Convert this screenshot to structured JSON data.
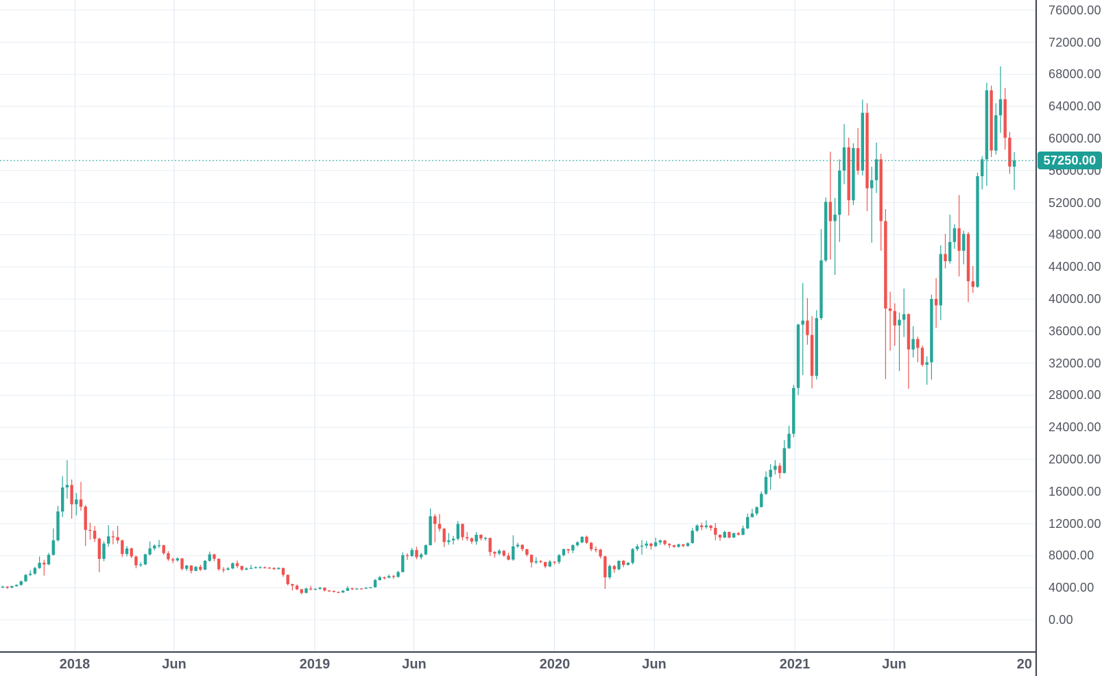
{
  "chart_data": {
    "type": "candlestick",
    "title": "",
    "xlabel": "",
    "ylabel": "",
    "legend": [],
    "grid": true,
    "last_price": 57250,
    "last_price_label": "57250.00",
    "ylim": [
      0,
      78500
    ],
    "y_axis": {
      "ticks": [
        {
          "value": 76000,
          "label": "76000.00"
        },
        {
          "value": 72000,
          "label": "72000.00"
        },
        {
          "value": 68000,
          "label": "68000.00"
        },
        {
          "value": 64000,
          "label": "64000.00"
        },
        {
          "value": 60000,
          "label": "60000.00"
        },
        {
          "value": 56000,
          "label": "56000.00"
        },
        {
          "value": 52000,
          "label": "52000.00"
        },
        {
          "value": 48000,
          "label": "48000.00"
        },
        {
          "value": 44000,
          "label": "44000.00"
        },
        {
          "value": 40000,
          "label": "40000.00"
        },
        {
          "value": 36000,
          "label": "36000.00"
        },
        {
          "value": 32000,
          "label": "32000.00"
        },
        {
          "value": 28000,
          "label": "28000.00"
        },
        {
          "value": 24000,
          "label": "24000.00"
        },
        {
          "value": 20000,
          "label": "20000.00"
        },
        {
          "value": 16000,
          "label": "16000.00"
        },
        {
          "value": 12000,
          "label": "12000.00"
        },
        {
          "value": 8000,
          "label": "8000.00"
        },
        {
          "value": 4000,
          "label": "4000.00"
        },
        {
          "value": 0,
          "label": "0.00"
        }
      ]
    },
    "x_axis": {
      "start_date": "2017-09-13",
      "interval_days": 7,
      "ticks": [
        {
          "label": "2018",
          "week": 15.71
        },
        {
          "label": "Jun",
          "week": 37.29
        },
        {
          "label": "2019",
          "week": 67.86
        },
        {
          "label": "Jun",
          "week": 89.43
        },
        {
          "label": "2020",
          "week": 120.0
        },
        {
          "label": "Jun",
          "week": 141.71
        },
        {
          "label": "2021",
          "week": 172.29
        },
        {
          "label": "Jun",
          "week": 193.86
        },
        {
          "label": "20",
          "week": 224.43,
          "clipped": true
        }
      ]
    },
    "colors": {
      "up": "#26a69a",
      "down": "#ef5350",
      "last_price_tag_bg": "#1d9e96",
      "last_price_line": "#2aa79c",
      "grid_h": "#e8edf4",
      "grid_v": "#dde7f2",
      "axis_text": "#51565f",
      "axis_border": "#3c4150"
    },
    "candles_ohlc": [
      [
        4100,
        4250,
        3950,
        4130
      ],
      [
        4130,
        4180,
        3850,
        4000
      ],
      [
        4000,
        4250,
        3950,
        4200
      ],
      [
        4200,
        4420,
        4110,
        4350
      ],
      [
        4350,
        4890,
        4250,
        4800
      ],
      [
        4800,
        5700,
        4720,
        5600
      ],
      [
        5600,
        6150,
        5450,
        5750
      ],
      [
        5750,
        6600,
        5600,
        6450
      ],
      [
        6450,
        7900,
        6350,
        7100
      ],
      [
        7100,
        7480,
        5500,
        6900
      ],
      [
        6900,
        8350,
        6800,
        8100
      ],
      [
        8100,
        11400,
        8000,
        9900
      ],
      [
        9900,
        14200,
        9750,
        13500
      ],
      [
        13500,
        17900,
        12800,
        16500
      ],
      [
        16500,
        19890,
        15100,
        16800
      ],
      [
        16800,
        17500,
        12600,
        14400
      ],
      [
        14400,
        15800,
        13000,
        15000
      ],
      [
        15000,
        17200,
        13600,
        14100
      ],
      [
        14100,
        14300,
        9200,
        11200
      ],
      [
        11200,
        12100,
        10000,
        11100
      ],
      [
        11100,
        11700,
        9700,
        10100
      ],
      [
        10100,
        10250,
        5920,
        7600
      ],
      [
        7600,
        9800,
        7300,
        9500
      ],
      [
        9500,
        11800,
        9100,
        10400
      ],
      [
        10400,
        11100,
        9400,
        10300
      ],
      [
        10300,
        11700,
        9500,
        9900
      ],
      [
        9900,
        10000,
        7800,
        8200
      ],
      [
        8200,
        9200,
        7900,
        8900
      ],
      [
        8900,
        9000,
        7700,
        7900
      ],
      [
        7900,
        8000,
        6425,
        6800
      ],
      [
        6800,
        7200,
        6600,
        6900
      ],
      [
        6900,
        8250,
        6800,
        8150
      ],
      [
        8150,
        9750,
        8000,
        8900
      ],
      [
        8900,
        9400,
        8650,
        9250
      ],
      [
        9250,
        9950,
        8950,
        9300
      ],
      [
        9300,
        9350,
        8100,
        8300
      ],
      [
        8300,
        8550,
        7350,
        7550
      ],
      [
        7550,
        7750,
        7050,
        7400
      ],
      [
        7400,
        7800,
        7250,
        7650
      ],
      [
        7650,
        7700,
        6150,
        6350
      ],
      [
        6350,
        6850,
        6100,
        6750
      ],
      [
        6750,
        6830,
        5780,
        6100
      ],
      [
        6100,
        6700,
        6050,
        6600
      ],
      [
        6600,
        6850,
        6080,
        6250
      ],
      [
        6250,
        7450,
        6200,
        7350
      ],
      [
        7350,
        8500,
        7250,
        8150
      ],
      [
        8150,
        8250,
        7300,
        7600
      ],
      [
        7600,
        7650,
        6120,
        6300
      ],
      [
        6300,
        6560,
        5900,
        6250
      ],
      [
        6250,
        6580,
        6150,
        6400
      ],
      [
        6400,
        7150,
        6300,
        7050
      ],
      [
        7050,
        7400,
        6450,
        6700
      ],
      [
        6700,
        6750,
        6100,
        6250
      ],
      [
        6250,
        6550,
        6180,
        6400
      ],
      [
        6400,
        6830,
        6350,
        6450
      ],
      [
        6450,
        6650,
        6400,
        6550
      ],
      [
        6550,
        6700,
        6450,
        6550
      ],
      [
        6550,
        6640,
        6400,
        6500
      ],
      [
        6500,
        6580,
        6390,
        6450
      ],
      [
        6450,
        6550,
        6250,
        6300
      ],
      [
        6300,
        6560,
        6280,
        6450
      ],
      [
        6450,
        6500,
        5350,
        5600
      ],
      [
        5600,
        5650,
        4280,
        4450
      ],
      [
        4450,
        4500,
        3650,
        4250
      ],
      [
        4250,
        4400,
        3700,
        3800
      ],
      [
        3800,
        3850,
        3150,
        3350
      ],
      [
        3350,
        4000,
        3300,
        3900
      ],
      [
        3900,
        4250,
        3650,
        3800
      ],
      [
        3800,
        3950,
        3700,
        3850
      ],
      [
        3850,
        4090,
        3770,
        4000
      ],
      [
        4000,
        4050,
        3550,
        3650
      ],
      [
        3650,
        3700,
        3480,
        3600
      ],
      [
        3600,
        3650,
        3400,
        3480
      ],
      [
        3480,
        3520,
        3330,
        3400
      ],
      [
        3400,
        3700,
        3350,
        3620
      ],
      [
        3620,
        4190,
        3580,
        3950
      ],
      [
        3950,
        3980,
        3700,
        3820
      ],
      [
        3820,
        3950,
        3750,
        3900
      ],
      [
        3900,
        3940,
        3800,
        3880
      ],
      [
        3880,
        4050,
        3850,
        4000
      ],
      [
        4000,
        4080,
        3920,
        4050
      ],
      [
        4050,
        5100,
        4020,
        4950
      ],
      [
        4950,
        5480,
        4900,
        5300
      ],
      [
        5300,
        5400,
        5000,
        5250
      ],
      [
        5250,
        5650,
        5150,
        5450
      ],
      [
        5450,
        5600,
        5100,
        5350
      ],
      [
        5350,
        6100,
        5250,
        5950
      ],
      [
        5950,
        8390,
        5900,
        8050
      ],
      [
        8050,
        8300,
        7450,
        7950
      ],
      [
        7950,
        8950,
        7800,
        8700
      ],
      [
        8700,
        9100,
        7550,
        7800
      ],
      [
        7800,
        8350,
        7510,
        8150
      ],
      [
        8150,
        9390,
        8050,
        9300
      ],
      [
        9300,
        13880,
        9250,
        12900
      ],
      [
        12900,
        13200,
        9650,
        11950
      ],
      [
        11950,
        13200,
        11000,
        11350
      ],
      [
        11350,
        11450,
        9080,
        9700
      ],
      [
        9700,
        10800,
        9350,
        9900
      ],
      [
        9900,
        10450,
        9400,
        10100
      ],
      [
        10100,
        12320,
        9870,
        11950
      ],
      [
        11950,
        12000,
        9900,
        10300
      ],
      [
        10300,
        10950,
        9850,
        10150
      ],
      [
        10150,
        10280,
        9450,
        9750
      ],
      [
        9750,
        10950,
        9350,
        10600
      ],
      [
        10600,
        10650,
        9900,
        10150
      ],
      [
        10150,
        10350,
        9850,
        10200
      ],
      [
        10200,
        10250,
        7950,
        8450
      ],
      [
        8450,
        8560,
        7750,
        8250
      ],
      [
        8250,
        8800,
        8050,
        8600
      ],
      [
        8600,
        8700,
        7850,
        8000
      ],
      [
        8000,
        8350,
        7400,
        7500
      ],
      [
        7500,
        10540,
        7350,
        9150
      ],
      [
        9150,
        9600,
        8950,
        9350
      ],
      [
        9350,
        9400,
        8550,
        8800
      ],
      [
        8800,
        8850,
        7900,
        8100
      ],
      [
        8100,
        8150,
        6520,
        7150
      ],
      [
        7150,
        7800,
        6950,
        7300
      ],
      [
        7300,
        7450,
        7050,
        7200
      ],
      [
        7200,
        7250,
        6430,
        6650
      ],
      [
        6650,
        7450,
        6550,
        7250
      ],
      [
        7250,
        7300,
        6900,
        7200
      ],
      [
        7200,
        8200,
        6950,
        8050
      ],
      [
        8050,
        8900,
        7900,
        8800
      ],
      [
        8800,
        8850,
        8250,
        8650
      ],
      [
        8650,
        9400,
        8300,
        9300
      ],
      [
        9300,
        9800,
        9100,
        9650
      ],
      [
        9650,
        10400,
        9550,
        10350
      ],
      [
        10350,
        10500,
        9450,
        9600
      ],
      [
        9600,
        9700,
        8550,
        8800
      ],
      [
        8800,
        9150,
        8400,
        8750
      ],
      [
        8750,
        8850,
        7650,
        7900
      ],
      [
        7900,
        8000,
        3850,
        5300
      ],
      [
        5300,
        6900,
        5050,
        6700
      ],
      [
        6700,
        6850,
        5870,
        6300
      ],
      [
        6300,
        7400,
        6150,
        7350
      ],
      [
        7350,
        7450,
        6550,
        6850
      ],
      [
        6850,
        7200,
        6750,
        7100
      ],
      [
        7100,
        8950,
        6900,
        8800
      ],
      [
        8800,
        9450,
        8550,
        9150
      ],
      [
        9150,
        9950,
        8120,
        9250
      ],
      [
        9250,
        9850,
        8900,
        9500
      ],
      [
        9500,
        9600,
        8750,
        9200
      ],
      [
        9200,
        10250,
        9050,
        9650
      ],
      [
        9650,
        10000,
        9350,
        9900
      ],
      [
        9900,
        9950,
        9250,
        9450
      ],
      [
        9450,
        9550,
        8950,
        9300
      ],
      [
        9300,
        9350,
        8950,
        9100
      ],
      [
        9100,
        9500,
        9000,
        9400
      ],
      [
        9400,
        9450,
        9050,
        9200
      ],
      [
        9200,
        9650,
        9100,
        9550
      ],
      [
        9550,
        11450,
        9500,
        11100
      ],
      [
        11100,
        11900,
        10950,
        11750
      ],
      [
        11750,
        12100,
        11150,
        11550
      ],
      [
        11550,
        12400,
        11350,
        11750
      ],
      [
        11750,
        11800,
        11100,
        11450
      ],
      [
        11450,
        12050,
        9900,
        10600
      ],
      [
        10600,
        10650,
        9850,
        10250
      ],
      [
        10250,
        11100,
        10200,
        10950
      ],
      [
        10950,
        11000,
        10150,
        10250
      ],
      [
        10250,
        10850,
        10200,
        10800
      ],
      [
        10800,
        10950,
        10500,
        10600
      ],
      [
        10600,
        11750,
        10550,
        11400
      ],
      [
        11400,
        13250,
        11300,
        12800
      ],
      [
        12800,
        13850,
        12750,
        13250
      ],
      [
        13250,
        14100,
        13000,
        14050
      ],
      [
        14050,
        16000,
        14000,
        15700
      ],
      [
        15700,
        18500,
        15550,
        17800
      ],
      [
        17800,
        19400,
        16200,
        18700
      ],
      [
        18700,
        19900,
        18100,
        19200
      ],
      [
        19200,
        19550,
        17600,
        18300
      ],
      [
        18300,
        22400,
        18250,
        21400
      ],
      [
        21400,
        24200,
        21300,
        23200
      ],
      [
        23200,
        29300,
        22750,
        28900
      ],
      [
        28900,
        36900,
        28000,
        36800
      ],
      [
        36800,
        42000,
        30500,
        37300
      ],
      [
        37300,
        40100,
        34300,
        35500
      ],
      [
        35500,
        37850,
        28850,
        30400
      ],
      [
        30400,
        38600,
        29950,
        37600
      ],
      [
        37600,
        48700,
        37350,
        44800
      ],
      [
        44800,
        52650,
        44600,
        52100
      ],
      [
        52100,
        58350,
        44900,
        49700
      ],
      [
        49700,
        52600,
        43000,
        50500
      ],
      [
        50500,
        57400,
        47100,
        56000
      ],
      [
        56000,
        61800,
        54300,
        58900
      ],
      [
        58900,
        60100,
        50400,
        52300
      ],
      [
        52300,
        59400,
        51700,
        58800
      ],
      [
        58800,
        61300,
        55500,
        56000
      ],
      [
        56000,
        64850,
        55400,
        63200
      ],
      [
        63200,
        64400,
        50950,
        53800
      ],
      [
        53800,
        56500,
        47000,
        54800
      ],
      [
        54800,
        59500,
        53200,
        57400
      ],
      [
        57400,
        58100,
        46000,
        49700
      ],
      [
        49700,
        51200,
        30000,
        38800
      ],
      [
        38800,
        40900,
        33550,
        38500
      ],
      [
        38500,
        39450,
        34150,
        36700
      ],
      [
        36700,
        38300,
        31000,
        37400
      ],
      [
        37400,
        41300,
        35250,
        38100
      ],
      [
        38100,
        38200,
        28800,
        33700
      ],
      [
        33700,
        36600,
        32700,
        35000
      ],
      [
        35000,
        35300,
        32100,
        33900
      ],
      [
        33900,
        34200,
        31550,
        31800
      ],
      [
        31800,
        32850,
        29300,
        32100
      ],
      [
        32100,
        40550,
        29950,
        40000
      ],
      [
        40000,
        42600,
        36400,
        39200
      ],
      [
        39200,
        46700,
        37350,
        45600
      ],
      [
        45600,
        48100,
        43800,
        44700
      ],
      [
        44700,
        50500,
        44400,
        47100
      ],
      [
        47100,
        49300,
        46250,
        48800
      ],
      [
        48800,
        52950,
        42800,
        46000
      ],
      [
        46000,
        48500,
        44300,
        48100
      ],
      [
        48100,
        48350,
        39600,
        42200
      ],
      [
        42200,
        44100,
        40750,
        41500
      ],
      [
        41500,
        55750,
        41400,
        55300
      ],
      [
        55300,
        57800,
        53650,
        57400
      ],
      [
        57400,
        66950,
        54100,
        66000
      ],
      [
        66000,
        66600,
        57700,
        58500
      ],
      [
        58500,
        64400,
        58000,
        62900
      ],
      [
        62900,
        68990,
        60700,
        64900
      ],
      [
        64900,
        66300,
        58600,
        60100
      ],
      [
        60100,
        60800,
        55600,
        56500
      ],
      [
        56500,
        58300,
        53600,
        57250
      ]
    ]
  },
  "icons": {
    "gear": "time-axis-settings"
  }
}
